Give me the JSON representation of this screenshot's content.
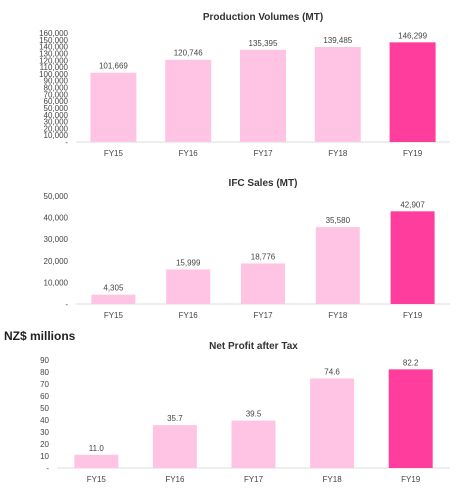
{
  "page_caption": "NZ$ millions",
  "colors": {
    "light": "#ffc4e3",
    "highlight": "#ff3d9c",
    "gridline": "#dddddd",
    "text": "#444444"
  },
  "chart_data": [
    {
      "type": "bar",
      "title": "Production Volumes (MT)",
      "categories": [
        "FY15",
        "FY16",
        "FY17",
        "FY18",
        "FY19"
      ],
      "values": [
        101669,
        120746,
        135395,
        139485,
        146299
      ],
      "data_labels": [
        "101,669",
        "120,746",
        "135,395",
        "139,485",
        "146,299"
      ],
      "ylim": [
        0,
        160000
      ],
      "yticks": [
        0,
        10000,
        20000,
        30000,
        40000,
        50000,
        60000,
        70000,
        80000,
        90000,
        100000,
        110000,
        120000,
        130000,
        140000,
        150000,
        160000
      ],
      "ytick_labels": [
        "-",
        "10,000",
        "20,000",
        "30,000",
        "40,000",
        "50,000",
        "60,000",
        "70,000",
        "80,000",
        "90,000",
        "100,000",
        "110,000",
        "120,000",
        "130,000",
        "140,000",
        "150,000",
        "160,000"
      ],
      "highlight_index": 4,
      "grid": false,
      "xlabel": "",
      "ylabel": ""
    },
    {
      "type": "bar",
      "title": "IFC Sales (MT)",
      "categories": [
        "FY15",
        "FY16",
        "FY17",
        "FY18",
        "FY19"
      ],
      "values": [
        4305,
        15999,
        18776,
        35580,
        42907
      ],
      "data_labels": [
        "4,305",
        "15,999",
        "18,776",
        "35,580",
        "42,907"
      ],
      "ylim": [
        0,
        50000
      ],
      "yticks": [
        0,
        10000,
        20000,
        30000,
        40000,
        50000
      ],
      "ytick_labels": [
        "-",
        "10,000",
        "20,000",
        "30,000",
        "40,000",
        "50,000"
      ],
      "highlight_index": 4,
      "grid": false,
      "xlabel": "",
      "ylabel": ""
    },
    {
      "type": "bar",
      "title": "Net Profit after Tax",
      "categories": [
        "FY15",
        "FY16",
        "FY17",
        "FY18",
        "FY19"
      ],
      "values": [
        11.0,
        35.7,
        39.5,
        74.6,
        82.2
      ],
      "data_labels": [
        "11.0",
        "35.7",
        "39.5",
        "74.6",
        "82.2"
      ],
      "ylim": [
        0,
        90
      ],
      "yticks": [
        0,
        10,
        20,
        30,
        40,
        50,
        60,
        70,
        80,
        90
      ],
      "ytick_labels": [
        "-",
        "10",
        "20",
        "30",
        "40",
        "50",
        "60",
        "70",
        "80",
        "90"
      ],
      "highlight_index": 4,
      "grid": false,
      "xlabel": "",
      "ylabel": ""
    }
  ]
}
